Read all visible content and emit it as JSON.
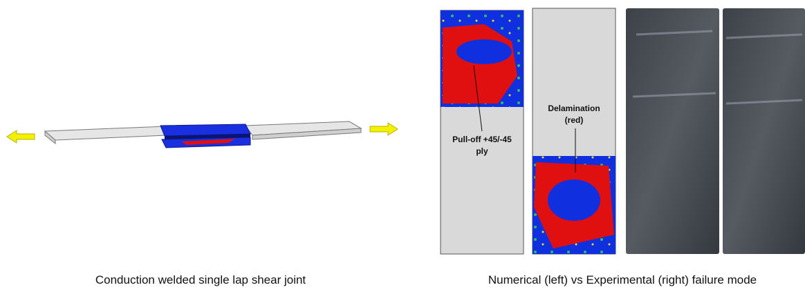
{
  "left_panel": {
    "caption": "Conduction welded single lap shear joint"
  },
  "right_panel": {
    "caption": "Numerical (left) vs Experimental (right) failure mode",
    "annotations": [
      {
        "lines": [
          "Pull-off +45/-45",
          "ply"
        ]
      },
      {
        "lines": [
          "Delamination",
          "(red)"
        ]
      }
    ]
  }
}
